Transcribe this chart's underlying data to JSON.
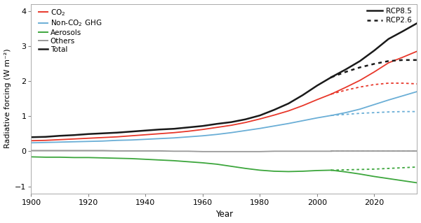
{
  "xlabel": "Year",
  "ylabel": "Radiative forcing (W m⁻²)",
  "xlim": [
    1900,
    2035
  ],
  "ylim": [
    -1.2,
    4.2
  ],
  "yticks": [
    -1,
    0,
    1,
    2,
    3,
    4
  ],
  "xticks": [
    1900,
    1920,
    1940,
    1960,
    1980,
    2000,
    2020
  ],
  "years_hist": [
    1900,
    1905,
    1910,
    1915,
    1920,
    1925,
    1930,
    1935,
    1940,
    1945,
    1950,
    1955,
    1960,
    1965,
    1970,
    1975,
    1980,
    1985,
    1990,
    1995,
    2000,
    2005
  ],
  "co2_hist": [
    0.3,
    0.31,
    0.33,
    0.35,
    0.37,
    0.39,
    0.41,
    0.44,
    0.47,
    0.5,
    0.53,
    0.57,
    0.62,
    0.68,
    0.74,
    0.82,
    0.92,
    1.03,
    1.15,
    1.3,
    1.47,
    1.63
  ],
  "nonco2_hist": [
    0.24,
    0.25,
    0.26,
    0.27,
    0.28,
    0.29,
    0.31,
    0.32,
    0.34,
    0.36,
    0.38,
    0.41,
    0.44,
    0.48,
    0.53,
    0.59,
    0.65,
    0.72,
    0.79,
    0.87,
    0.95,
    1.02
  ],
  "aerosol_hist": [
    -0.16,
    -0.17,
    -0.17,
    -0.18,
    -0.18,
    -0.19,
    -0.2,
    -0.21,
    -0.23,
    -0.25,
    -0.27,
    -0.3,
    -0.33,
    -0.37,
    -0.43,
    -0.49,
    -0.54,
    -0.57,
    -0.58,
    -0.57,
    -0.55,
    -0.54
  ],
  "others_hist": [
    0.02,
    0.02,
    0.02,
    0.02,
    0.02,
    0.02,
    0.01,
    0.01,
    0.01,
    0.01,
    0.0,
    0.0,
    -0.01,
    -0.01,
    -0.01,
    -0.01,
    -0.01,
    0.0,
    0.0,
    0.0,
    0.0,
    0.0
  ],
  "total_hist": [
    0.4,
    0.41,
    0.44,
    0.46,
    0.49,
    0.51,
    0.53,
    0.56,
    0.59,
    0.62,
    0.64,
    0.68,
    0.72,
    0.78,
    0.83,
    0.91,
    1.02,
    1.18,
    1.36,
    1.6,
    1.87,
    2.11
  ],
  "years_rcp85": [
    2005,
    2010,
    2015,
    2020,
    2025,
    2030,
    2035
  ],
  "co2_rcp85": [
    1.63,
    1.82,
    2.02,
    2.26,
    2.52,
    2.68,
    2.85
  ],
  "nonco2_rcp85": [
    1.02,
    1.1,
    1.2,
    1.33,
    1.46,
    1.58,
    1.7
  ],
  "aerosol_rcp85": [
    -0.54,
    -0.59,
    -0.65,
    -0.72,
    -0.78,
    -0.84,
    -0.9
  ],
  "others_rcp85": [
    0.0,
    0.0,
    0.0,
    0.0,
    0.0,
    0.0,
    0.0
  ],
  "total_rcp85": [
    2.11,
    2.33,
    2.57,
    2.87,
    3.2,
    3.42,
    3.65
  ],
  "years_rcp26": [
    2005,
    2010,
    2015,
    2020,
    2025,
    2030,
    2035
  ],
  "co2_rcp26": [
    1.63,
    1.74,
    1.83,
    1.9,
    1.94,
    1.94,
    1.92
  ],
  "nonco2_rcp26": [
    1.02,
    1.05,
    1.08,
    1.1,
    1.12,
    1.13,
    1.13
  ],
  "aerosol_rcp26": [
    -0.54,
    -0.53,
    -0.52,
    -0.51,
    -0.49,
    -0.47,
    -0.45
  ],
  "others_rcp26": [
    0.0,
    0.0,
    0.0,
    0.0,
    0.0,
    0.0,
    0.0
  ],
  "total_rcp26": [
    2.11,
    2.26,
    2.39,
    2.49,
    2.57,
    2.6,
    2.6
  ],
  "line_colors": {
    "co2": "#e8372a",
    "nonco2": "#6aaed6",
    "aerosol": "#3ca63c",
    "others": "#999999",
    "total": "#1a1a1a"
  },
  "background_color": "#ffffff"
}
